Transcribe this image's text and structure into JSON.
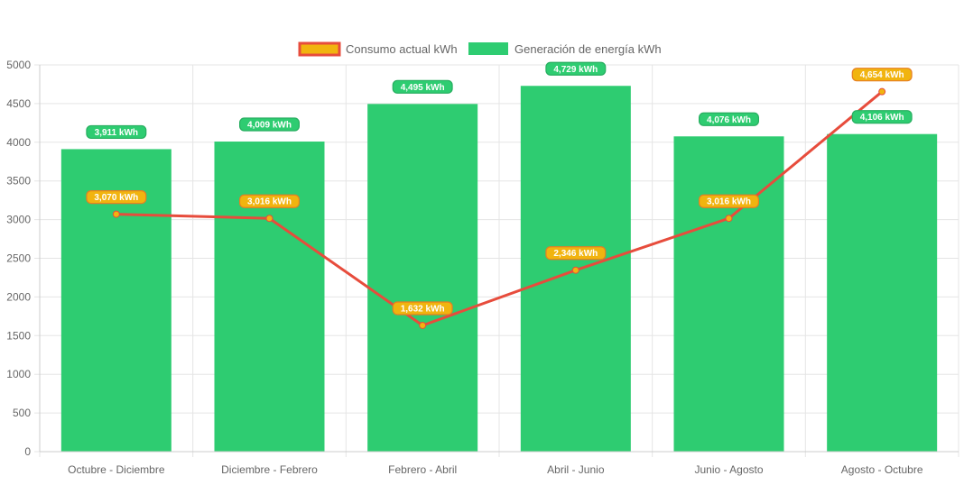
{
  "chart_data": {
    "type": "bar",
    "categories": [
      "Octubre - Diciembre",
      "Diciembre - Febrero",
      "Febrero - Abril",
      "Abril - Junio",
      "Junio - Agosto",
      "Agosto - Octubre"
    ],
    "series": [
      {
        "name": "Consumo actual kWh",
        "type": "line",
        "values": [
          3070,
          3016,
          1632,
          2346,
          3016,
          4654
        ],
        "labels": [
          "3,070 kWh",
          "3,016 kWh",
          "1,632 kWh",
          "2,346 kWh",
          "3,016 kWh",
          "4,654 kWh"
        ],
        "color": "#e74c3c",
        "point_color": "#f1b40f"
      },
      {
        "name": "Generación de energía kWh",
        "type": "bar",
        "values": [
          3911,
          4009,
          4495,
          4729,
          4076,
          4106
        ],
        "labels": [
          "3,911 kWh",
          "4,009 kWh",
          "4,495 kWh",
          "4,729 kWh",
          "4,076 kWh",
          "4,106 kWh"
        ],
        "color": "#2ecc71"
      }
    ],
    "ylim": [
      0,
      5000
    ],
    "yticks": [
      0,
      500,
      1000,
      1500,
      2000,
      2500,
      3000,
      3500,
      4000,
      4500,
      5000
    ],
    "ytick_labels": [
      "0",
      "500",
      "1000",
      "1500",
      "2000",
      "2500",
      "3000",
      "3500",
      "4000",
      "4500",
      "5000"
    ],
    "grid": true,
    "legend_position": "top-center",
    "colors": {
      "grid": "#e5e5e5",
      "axis": "#cccccc",
      "tick_text": "#666666"
    }
  }
}
